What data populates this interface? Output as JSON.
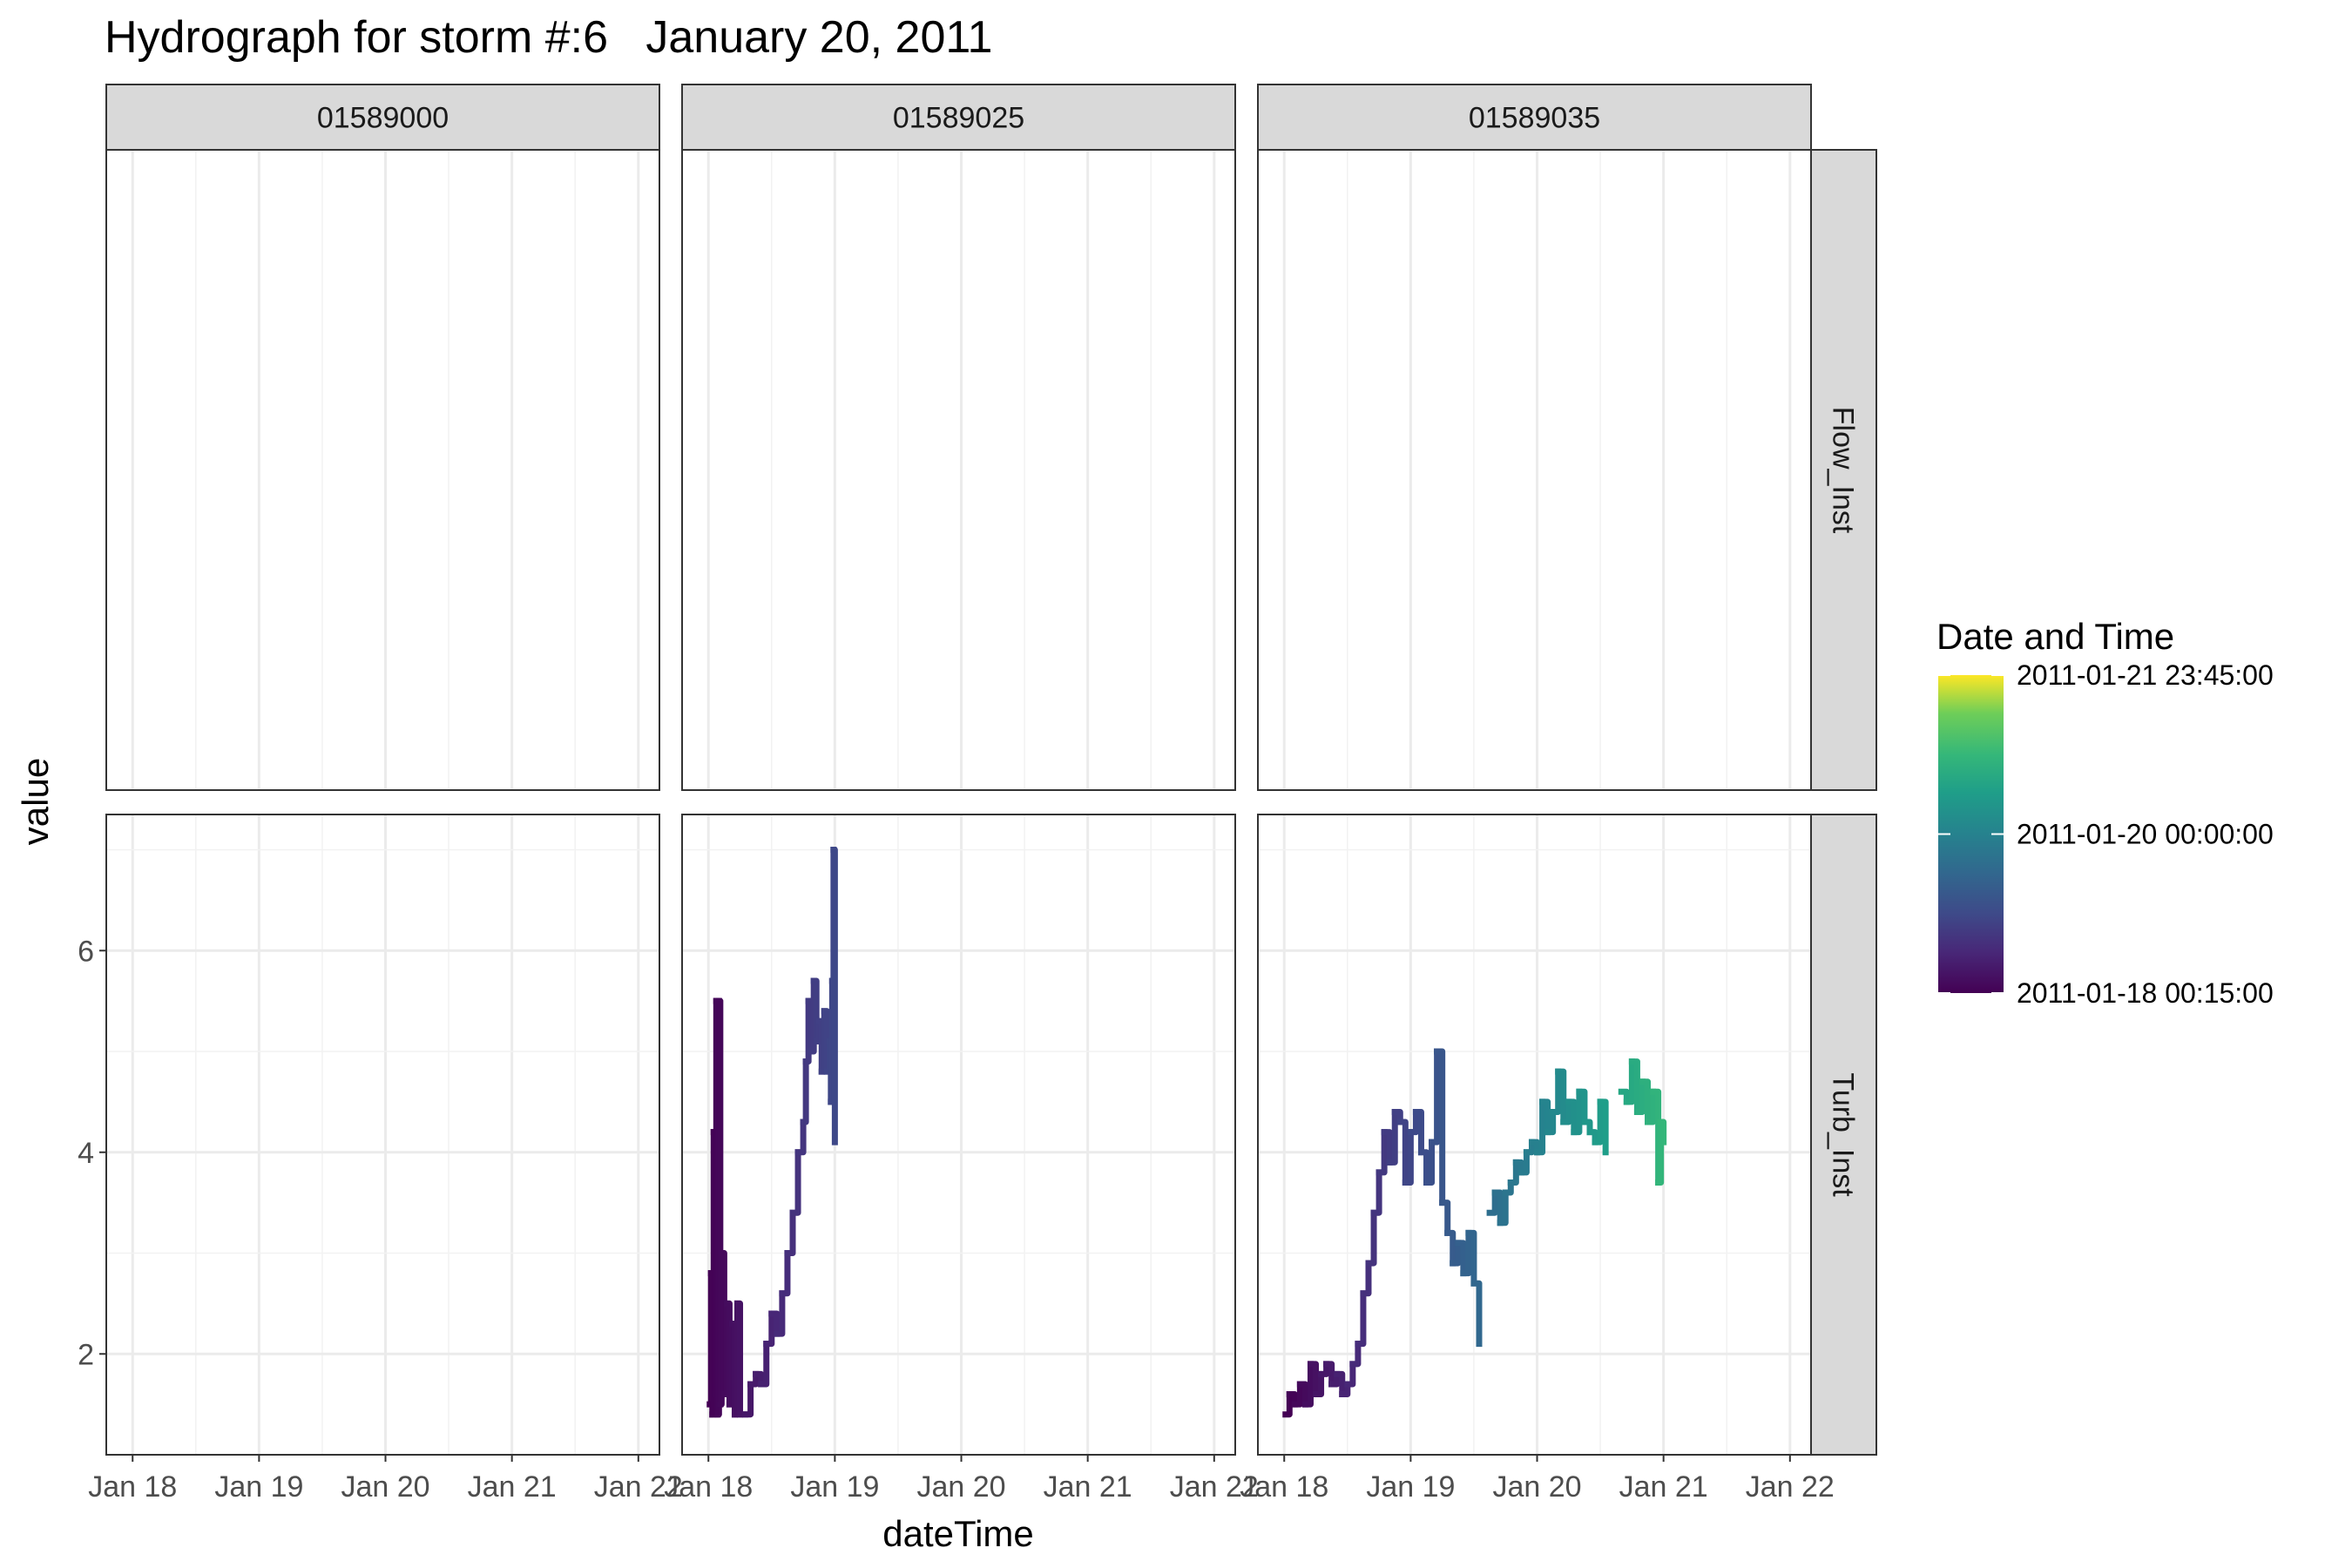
{
  "chart_data": {
    "type": "line",
    "title": "Hydrograph for storm #:6   January 20, 2011",
    "xlabel": "dateTime",
    "ylabel": "value",
    "x_type": "datetime",
    "xlim": [
      "2011-01-17 19:00",
      "2011-01-22 04:00"
    ],
    "ylim": [
      1.0,
      7.35
    ],
    "x_ticks": [
      {
        "value": "2011-01-18 00:00",
        "label": "Jan 18"
      },
      {
        "value": "2011-01-19 00:00",
        "label": "Jan 19"
      },
      {
        "value": "2011-01-20 00:00",
        "label": "Jan 20"
      },
      {
        "value": "2011-01-21 00:00",
        "label": "Jan 21"
      },
      {
        "value": "2011-01-22 00:00",
        "label": "Jan 22"
      }
    ],
    "y_ticks": [
      2,
      4,
      6
    ],
    "grid": true,
    "facet_columns": [
      "01589000",
      "01589025",
      "01589035"
    ],
    "facet_rows": [
      "Flow_Inst",
      "Turb_Inst"
    ],
    "legend": {
      "title": "Date and Time",
      "position": "right",
      "type": "colorbar",
      "palette": "viridis",
      "breaks": [
        "2011-01-21 23:45:00",
        "2011-01-20 00:00:00",
        "2011-01-18 00:15:00"
      ],
      "limits": [
        "2011-01-18 00:15",
        "2011-01-21 23:45"
      ]
    },
    "series": [
      {
        "site": "01589025",
        "parameter": "Turb_Inst",
        "points": [
          [
            "2011-01-18 00:15",
            1.5
          ],
          [
            "2011-01-18 00:30",
            2.8
          ],
          [
            "2011-01-18 00:45",
            1.4
          ],
          [
            "2011-01-18 01:00",
            4.2
          ],
          [
            "2011-01-18 01:15",
            1.6
          ],
          [
            "2011-01-18 01:30",
            5.5
          ],
          [
            "2011-01-18 01:45",
            1.4
          ],
          [
            "2011-01-18 02:00",
            5.5
          ],
          [
            "2011-01-18 02:15",
            1.5
          ],
          [
            "2011-01-18 02:30",
            3.0
          ],
          [
            "2011-01-18 03:00",
            1.6
          ],
          [
            "2011-01-18 03:30",
            2.5
          ],
          [
            "2011-01-18 04:00",
            1.5
          ],
          [
            "2011-01-18 04:30",
            2.3
          ],
          [
            "2011-01-18 05:00",
            1.4
          ],
          [
            "2011-01-18 05:30",
            2.5
          ],
          [
            "2011-01-18 06:00",
            1.4
          ],
          [
            "2011-01-18 07:00",
            1.4
          ],
          [
            "2011-01-18 08:00",
            1.7
          ],
          [
            "2011-01-18 09:00",
            1.8
          ],
          [
            "2011-01-18 10:00",
            1.7
          ],
          [
            "2011-01-18 11:00",
            2.1
          ],
          [
            "2011-01-18 12:00",
            2.4
          ],
          [
            "2011-01-18 13:00",
            2.2
          ],
          [
            "2011-01-18 14:00",
            2.6
          ],
          [
            "2011-01-18 15:00",
            3.0
          ],
          [
            "2011-01-18 16:00",
            3.4
          ],
          [
            "2011-01-18 17:00",
            4.0
          ],
          [
            "2011-01-18 18:00",
            4.3
          ],
          [
            "2011-01-18 18:30",
            4.9
          ],
          [
            "2011-01-18 19:00",
            5.5
          ],
          [
            "2011-01-18 19:30",
            5.0
          ],
          [
            "2011-01-18 20:00",
            5.7
          ],
          [
            "2011-01-18 20:30",
            5.1
          ],
          [
            "2011-01-18 21:00",
            5.3
          ],
          [
            "2011-01-18 21:30",
            4.8
          ],
          [
            "2011-01-18 22:00",
            5.4
          ],
          [
            "2011-01-18 22:30",
            4.8
          ],
          [
            "2011-01-18 23:00",
            5.1
          ],
          [
            "2011-01-18 23:15",
            4.5
          ],
          [
            "2011-01-18 23:30",
            5.7
          ],
          [
            "2011-01-18 23:45",
            7.0
          ],
          [
            "2011-01-19 00:00",
            4.1
          ]
        ]
      },
      {
        "site": "01589035",
        "parameter": "Turb_Inst",
        "points": [
          [
            "2011-01-18 00:15",
            1.4
          ],
          [
            "2011-01-18 01:00",
            1.6
          ],
          [
            "2011-01-18 02:00",
            1.5
          ],
          [
            "2011-01-18 03:00",
            1.7
          ],
          [
            "2011-01-18 04:00",
            1.5
          ],
          [
            "2011-01-18 05:00",
            1.9
          ],
          [
            "2011-01-18 06:00",
            1.6
          ],
          [
            "2011-01-18 07:00",
            1.8
          ],
          [
            "2011-01-18 08:00",
            1.9
          ],
          [
            "2011-01-18 09:00",
            1.7
          ],
          [
            "2011-01-18 10:00",
            1.8
          ],
          [
            "2011-01-18 11:00",
            1.6
          ],
          [
            "2011-01-18 12:00",
            1.7
          ],
          [
            "2011-01-18 13:00",
            1.9
          ],
          [
            "2011-01-18 14:00",
            2.1
          ],
          [
            "2011-01-18 15:00",
            2.6
          ],
          [
            "2011-01-18 16:00",
            2.9
          ],
          [
            "2011-01-18 17:00",
            3.4
          ],
          [
            "2011-01-18 18:00",
            3.8
          ],
          [
            "2011-01-18 19:00",
            4.2
          ],
          [
            "2011-01-18 20:00",
            3.9
          ],
          [
            "2011-01-18 21:00",
            4.4
          ],
          [
            "2011-01-18 22:00",
            4.3
          ],
          [
            "2011-01-18 23:00",
            3.7
          ],
          [
            "2011-01-19 00:00",
            4.2
          ],
          [
            "2011-01-19 01:00",
            4.4
          ],
          [
            "2011-01-19 02:00",
            4.0
          ],
          [
            "2011-01-19 03:00",
            3.7
          ],
          [
            "2011-01-19 04:00",
            4.1
          ],
          [
            "2011-01-19 05:00",
            5.0
          ],
          [
            "2011-01-19 06:00",
            3.5
          ],
          [
            "2011-01-19 07:00",
            3.2
          ],
          [
            "2011-01-19 08:00",
            2.9
          ],
          [
            "2011-01-19 09:00",
            3.1
          ],
          [
            "2011-01-19 10:00",
            2.8
          ],
          [
            "2011-01-19 11:00",
            3.2
          ],
          [
            "2011-01-19 12:00",
            2.7
          ],
          [
            "2011-01-19 13:00",
            2.1
          ],
          [
            "2011-01-19 15:00",
            3.4
          ],
          [
            "2011-01-19 16:00",
            3.6
          ],
          [
            "2011-01-19 17:00",
            3.3
          ],
          [
            "2011-01-19 18:00",
            3.6
          ],
          [
            "2011-01-19 19:00",
            3.7
          ],
          [
            "2011-01-19 20:00",
            3.9
          ],
          [
            "2011-01-19 21:00",
            3.8
          ],
          [
            "2011-01-19 22:00",
            4.0
          ],
          [
            "2011-01-19 23:00",
            4.1
          ],
          [
            "2011-01-20 00:00",
            4.0
          ],
          [
            "2011-01-20 01:00",
            4.5
          ],
          [
            "2011-01-20 02:00",
            4.2
          ],
          [
            "2011-01-20 03:00",
            4.4
          ],
          [
            "2011-01-20 04:00",
            4.8
          ],
          [
            "2011-01-20 05:00",
            4.3
          ],
          [
            "2011-01-20 06:00",
            4.5
          ],
          [
            "2011-01-20 07:00",
            4.2
          ],
          [
            "2011-01-20 08:00",
            4.6
          ],
          [
            "2011-01-20 09:00",
            4.3
          ],
          [
            "2011-01-20 10:00",
            4.2
          ],
          [
            "2011-01-20 11:00",
            4.1
          ],
          [
            "2011-01-20 12:00",
            4.5
          ],
          [
            "2011-01-20 13:00",
            4.0
          ],
          [
            "2011-01-20 16:00",
            4.6
          ],
          [
            "2011-01-20 17:00",
            4.5
          ],
          [
            "2011-01-20 18:00",
            4.9
          ],
          [
            "2011-01-20 19:00",
            4.4
          ],
          [
            "2011-01-20 20:00",
            4.7
          ],
          [
            "2011-01-20 21:00",
            4.3
          ],
          [
            "2011-01-20 22:00",
            4.6
          ],
          [
            "2011-01-20 23:00",
            3.7
          ],
          [
            "2011-01-20 23:30",
            4.3
          ],
          [
            "2011-01-21 00:00",
            4.1
          ]
        ]
      }
    ]
  }
}
